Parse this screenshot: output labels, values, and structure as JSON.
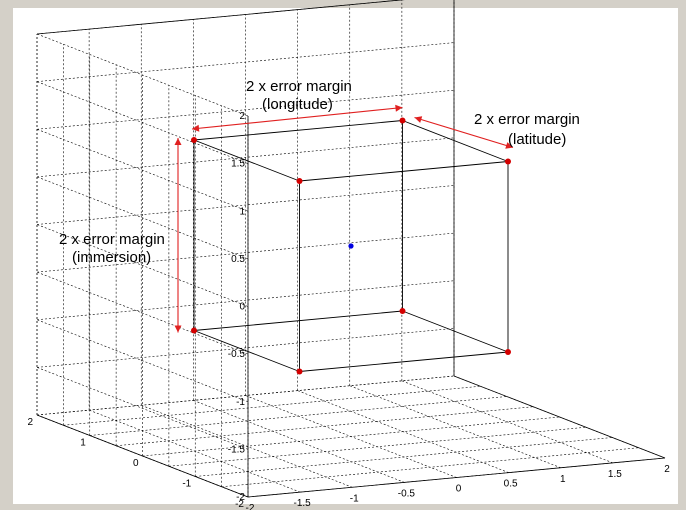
{
  "chart_data": {
    "type": "scatter",
    "view": "3d-box",
    "grid": true,
    "xlim": [
      -2,
      2
    ],
    "ylim": [
      -2,
      2
    ],
    "zlim": [
      -2,
      2
    ],
    "x_ticks": [
      "-2",
      "-1.5",
      "-1",
      "-0.5",
      "0",
      "0.5",
      "1",
      "1.5",
      "2"
    ],
    "y_ticks": [
      "-2",
      "-1",
      "0",
      "1",
      "2"
    ],
    "z_ticks": [
      "-2",
      "-1.5",
      "-1",
      "-0.5",
      "0",
      "0.5",
      "1",
      "1.5",
      "2"
    ],
    "colors": {
      "corner": "#d40000",
      "center": "#0000e0",
      "arrow": "#e02020",
      "edge": "#000000"
    },
    "corner_points": [
      {
        "x": -1,
        "y": -1,
        "z": 1
      },
      {
        "x": 1,
        "y": -1,
        "z": 1
      },
      {
        "x": 1,
        "y": 1,
        "z": 1
      },
      {
        "x": -1,
        "y": 1,
        "z": 1
      },
      {
        "x": -1,
        "y": -1,
        "z": -1
      },
      {
        "x": 1,
        "y": -1,
        "z": -1
      },
      {
        "x": 1,
        "y": 1,
        "z": -1
      },
      {
        "x": -1,
        "y": 1,
        "z": -1
      }
    ],
    "center_point": {
      "x": 0,
      "y": 0,
      "z": 0
    },
    "annotations": [
      {
        "line1": "2 x error margin",
        "line2": "(longitude)"
      },
      {
        "line1": "2 x error margin",
        "line2": "(latitude)"
      },
      {
        "line1": "2 x error margin",
        "line2": "(immersion)"
      }
    ]
  }
}
